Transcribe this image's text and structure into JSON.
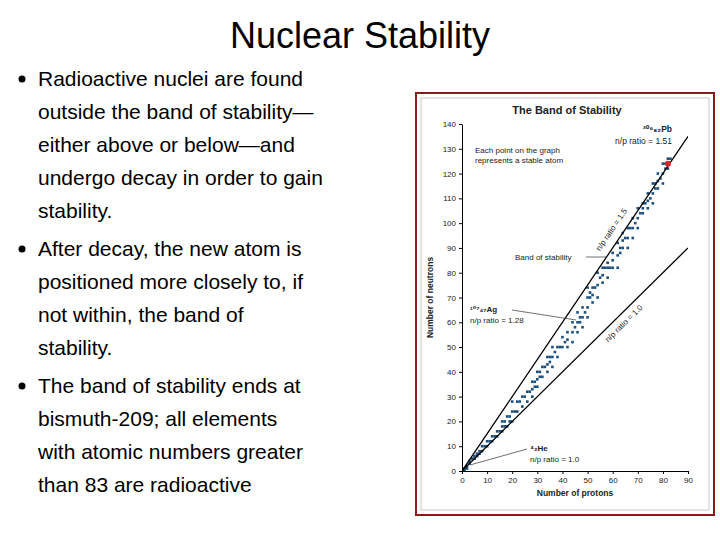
{
  "slide": {
    "title": "Nuclear Stability",
    "bullets": [
      [
        "Radioactive nuclei are found",
        "outside the band of stability—",
        "either above or below—and",
        "undergo decay in order to gain",
        "stability."
      ],
      [
        "After decay, the new atom is",
        "positioned more closely to, if",
        "not within, the band of",
        "stability."
      ],
      [
        "The band of stability ends at",
        "bismuth-209; all elements",
        "with atomic numbers greater",
        "than 83 are radioactive"
      ]
    ]
  },
  "chart_data": {
    "type": "scatter",
    "title": "The Band of Stability",
    "x_label": "Number of protons",
    "y_label": "Number of neutrons",
    "xlim": [
      0,
      90
    ],
    "xticks": [
      0,
      10,
      20,
      30,
      40,
      50,
      60,
      70,
      80,
      90
    ],
    "ylim": [
      0,
      140
    ],
    "yticks": [
      0,
      10,
      20,
      30,
      40,
      50,
      60,
      70,
      80,
      90,
      100,
      110,
      120,
      130,
      140
    ],
    "grid": false,
    "series": [
      {
        "type": "scatter",
        "marker": "square",
        "color": "#1c4f7c",
        "x": [
          1,
          1,
          2,
          2,
          3,
          3,
          4,
          5,
          5,
          6,
          6,
          7,
          7,
          8,
          8,
          9,
          10,
          10,
          11,
          12,
          12,
          13,
          14,
          14,
          15,
          16,
          16,
          16,
          17,
          17,
          18,
          18,
          19,
          19,
          20,
          20,
          20,
          21,
          22,
          22,
          23,
          24,
          24,
          25,
          26,
          26,
          27,
          28,
          28,
          28,
          29,
          29,
          30,
          30,
          30,
          31,
          31,
          32,
          32,
          33,
          34,
          34,
          34,
          35,
          35,
          36,
          36,
          36,
          37,
          38,
          38,
          39,
          40,
          40,
          41,
          42,
          42,
          42,
          44,
          44,
          44,
          45,
          46,
          46,
          46,
          47,
          47,
          48,
          48,
          48,
          49,
          50,
          50,
          50,
          50,
          51,
          51,
          52,
          52,
          52,
          53,
          54,
          54,
          54,
          55,
          56,
          56,
          56,
          57,
          58,
          58,
          58,
          59,
          60,
          60,
          60,
          62,
          62,
          62,
          63,
          63,
          64,
          64,
          64,
          65,
          66,
          66,
          66,
          67,
          68,
          68,
          68,
          69,
          70,
          70,
          70,
          71,
          72,
          72,
          72,
          73,
          74,
          74,
          74,
          75,
          76,
          76,
          76,
          77,
          77,
          78,
          78,
          78,
          79,
          80,
          80,
          80,
          81,
          81,
          82,
          82,
          82,
          83
        ],
        "values": [
          0,
          1,
          1,
          2,
          3,
          4,
          5,
          5,
          6,
          6,
          7,
          7,
          8,
          8,
          10,
          10,
          10,
          12,
          12,
          12,
          14,
          14,
          14,
          16,
          16,
          16,
          18,
          20,
          18,
          20,
          18,
          22,
          20,
          22,
          20,
          24,
          28,
          24,
          24,
          28,
          28,
          26,
          30,
          30,
          28,
          32,
          32,
          30,
          33,
          36,
          34,
          36,
          34,
          37,
          40,
          38,
          40,
          38,
          42,
          42,
          40,
          43,
          46,
          44,
          46,
          42,
          46,
          50,
          48,
          46,
          50,
          50,
          50,
          54,
          52,
          50,
          53,
          56,
          52,
          56,
          60,
          58,
          56,
          60,
          64,
          60,
          62,
          58,
          62,
          66,
          64,
          62,
          66,
          70,
          74,
          70,
          72,
          68,
          71,
          74,
          74,
          70,
          75,
          80,
          78,
          76,
          79,
          82,
          82,
          78,
          82,
          84,
          82,
          82,
          85,
          88,
          82,
          87,
          92,
          88,
          90,
          90,
          93,
          96,
          94,
          90,
          94,
          98,
          98,
          94,
          98,
          102,
          100,
          98,
          102,
          106,
          104,
          104,
          106,
          108,
          108,
          106,
          109,
          112,
          110,
          108,
          112,
          116,
          114,
          116,
          114,
          117,
          120,
          118,
          116,
          120,
          124,
          122,
          124,
          122,
          124,
          126,
          126
        ]
      },
      {
        "type": "line",
        "line_style": "solid",
        "color": "#000000",
        "x": [
          0,
          90
        ],
        "values": [
          0,
          135
        ]
      },
      {
        "type": "line",
        "line_style": "solid",
        "color": "#000000",
        "x": [
          0,
          90
        ],
        "values": [
          0,
          90
        ]
      },
      {
        "type": "scatter",
        "marker": "circle",
        "color": "#d62728",
        "x": [
          82
        ],
        "values": [
          124
        ]
      }
    ],
    "annotations": [
      [
        "²⁰⁶₈₂Pb",
        "n/p ratio = 1.51"
      ],
      [
        "Each point on the graph",
        "represents a stable atom"
      ],
      [
        "Band of stability"
      ],
      [
        "¹⁰⁷₄₇Ag",
        "n/p ratio = 1.28"
      ],
      [
        "⁴₂He",
        "n/p ratio = 1.0"
      ],
      [
        "n/p ratio = 1.5"
      ],
      [
        "n/p ratio = 1.0"
      ]
    ]
  }
}
